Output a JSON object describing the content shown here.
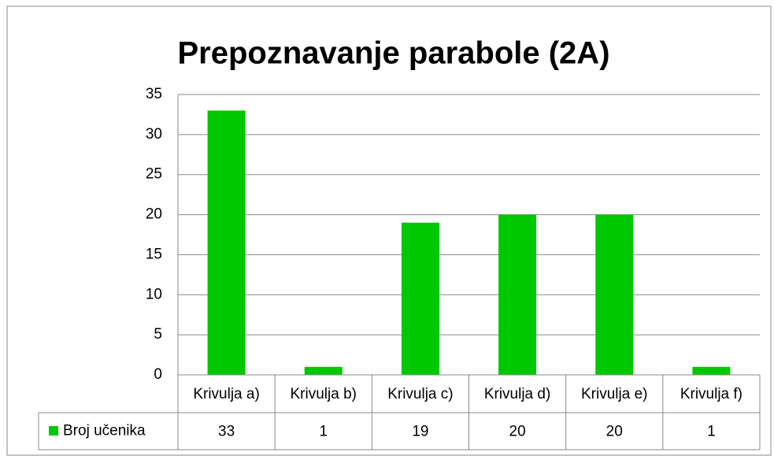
{
  "chart_data": {
    "type": "bar",
    "title": "Prepoznavanje parabole (2A)",
    "categories": [
      "Krivulja a)",
      "Krivulja b)",
      "Krivulja c)",
      "Krivulja d)",
      "Krivulja e)",
      "Krivulja f)"
    ],
    "series": [
      {
        "name": "Broj učenika",
        "color": "#00c800",
        "values": [
          33,
          1,
          19,
          20,
          20,
          1
        ]
      }
    ],
    "ylim": [
      0,
      35
    ],
    "yticks": [
      0,
      5,
      10,
      15,
      20,
      25,
      30,
      35
    ],
    "grid": true,
    "data_table": true
  }
}
